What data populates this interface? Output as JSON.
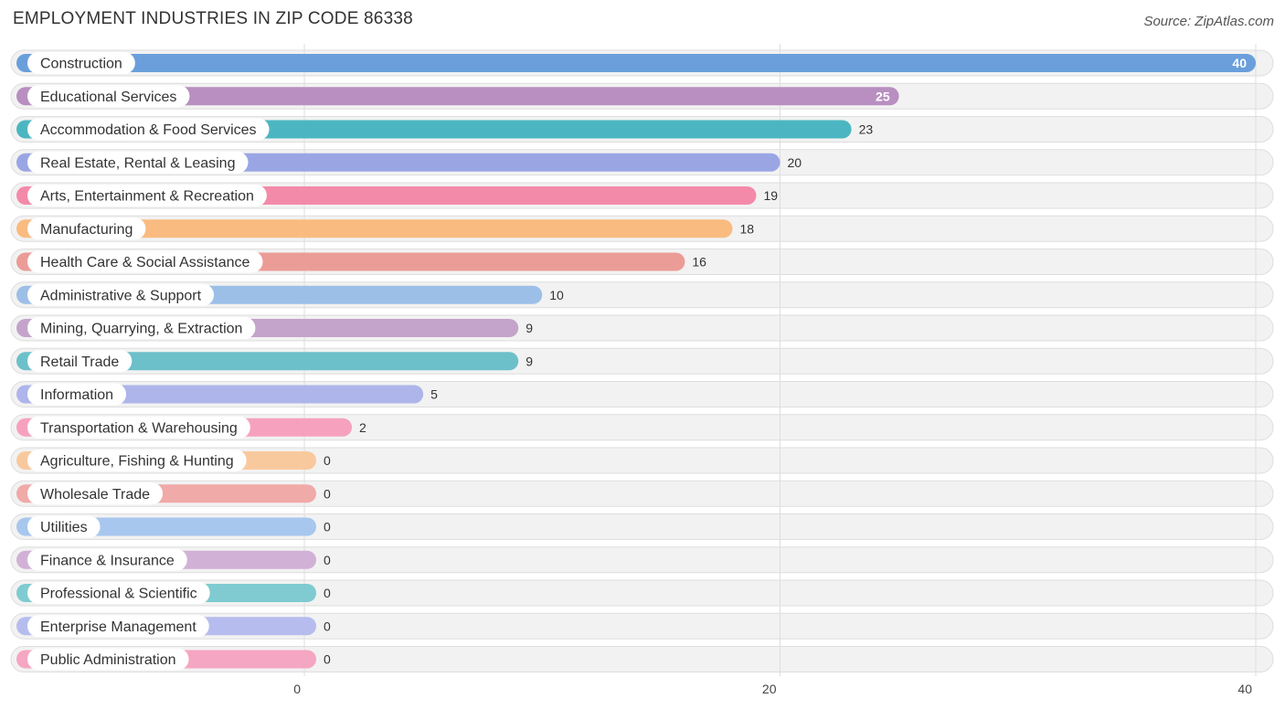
{
  "header": {
    "title": "EMPLOYMENT INDUSTRIES IN ZIP CODE 86338",
    "source": "Source: ZipAtlas.com"
  },
  "chart_data": {
    "type": "bar",
    "orientation": "horizontal",
    "title": "EMPLOYMENT INDUSTRIES IN ZIP CODE 86338",
    "xlabel": "",
    "ylabel": "",
    "xlim": [
      0,
      40
    ],
    "x_ticks": [
      0,
      20,
      40
    ],
    "grid": true,
    "categories": [
      "Construction",
      "Educational Services",
      "Accommodation & Food Services",
      "Real Estate, Rental & Leasing",
      "Arts, Entertainment & Recreation",
      "Manufacturing",
      "Health Care & Social Assistance",
      "Administrative & Support",
      "Mining, Quarrying, & Extraction",
      "Retail Trade",
      "Information",
      "Transportation & Warehousing",
      "Agriculture, Fishing & Hunting",
      "Wholesale Trade",
      "Utilities",
      "Finance & Insurance",
      "Professional & Scientific",
      "Enterprise Management",
      "Public Administration"
    ],
    "values": [
      40,
      25,
      23,
      20,
      19,
      18,
      16,
      10,
      9,
      9,
      5,
      2,
      0,
      0,
      0,
      0,
      0,
      0,
      0
    ],
    "colors": [
      "#6a9fdc",
      "#b88fc0",
      "#4bb6c1",
      "#9aa6e4",
      "#f48aaa",
      "#f9bb80",
      "#eb9c96",
      "#9cbfe8",
      "#c4a4cb",
      "#6cc0ca",
      "#adb5ea",
      "#f6a2bf",
      "#f9c99e",
      "#f0aaa8",
      "#a7c7ee",
      "#d2b1d6",
      "#7fcbd1",
      "#b6bdee",
      "#f5a6c2"
    ]
  }
}
